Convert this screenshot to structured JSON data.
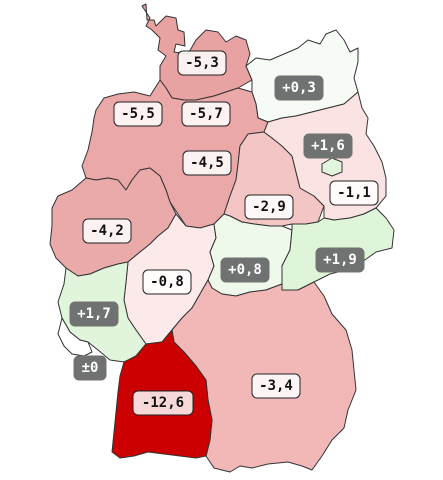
{
  "map": {
    "regions": [
      {
        "id": "schleswig-holstein",
        "value_label": "-5,3",
        "value": -5.3,
        "fill": "#e9a2a2",
        "label_style": "light"
      },
      {
        "id": "mecklenburg-vorpommern",
        "value_label": "+0,3",
        "value": 0.3,
        "fill": "#f7fbf5",
        "label_style": "dark"
      },
      {
        "id": "hamburg",
        "value_label": "-5,5",
        "value": -5.5,
        "fill": "#e9a2a2",
        "label_style": "light"
      },
      {
        "id": "bremen",
        "value_label": "-5,7",
        "value": -5.7,
        "fill": "#e89f9f",
        "label_style": "light"
      },
      {
        "id": "niedersachsen",
        "value_label": "-4,5",
        "value": -4.5,
        "fill": "#eba8a8",
        "label_style": "light"
      },
      {
        "id": "berlin",
        "value_label": "+1,6",
        "value": 1.6,
        "fill": "#e2f5dd",
        "label_style": "dark"
      },
      {
        "id": "brandenburg",
        "value_label": "-1,1",
        "value": -1.1,
        "fill": "#fbe3e3",
        "label_style": "light"
      },
      {
        "id": "sachsen-anhalt",
        "value_label": "-2,9",
        "value": -2.9,
        "fill": "#f3c5c5",
        "label_style": "light"
      },
      {
        "id": "nordrhein-westfalen",
        "value_label": "-4,2",
        "value": -4.2,
        "fill": "#ebaaaa",
        "label_style": "light"
      },
      {
        "id": "sachsen",
        "value_label": "+1,9",
        "value": 1.9,
        "fill": "#def5d9",
        "label_style": "dark"
      },
      {
        "id": "thueringen",
        "value_label": "+0,8",
        "value": 0.8,
        "fill": "#eef9ec",
        "label_style": "dark"
      },
      {
        "id": "hessen",
        "value_label": "-0,8",
        "value": -0.8,
        "fill": "#fceaea",
        "label_style": "light"
      },
      {
        "id": "rheinland-pfalz",
        "value_label": "+1,7",
        "value": 1.7,
        "fill": "#e0f5db",
        "label_style": "dark"
      },
      {
        "id": "saarland",
        "value_label": "±0",
        "value": 0,
        "fill": "#ffffff",
        "label_style": "dark"
      },
      {
        "id": "bayern",
        "value_label": "-3,4",
        "value": -3.4,
        "fill": "#f2b8b8",
        "label_style": "light"
      },
      {
        "id": "baden-wuerttemberg",
        "value_label": "-12,6",
        "value": -12.6,
        "fill": "#cc0000",
        "label_style": "light"
      }
    ]
  }
}
